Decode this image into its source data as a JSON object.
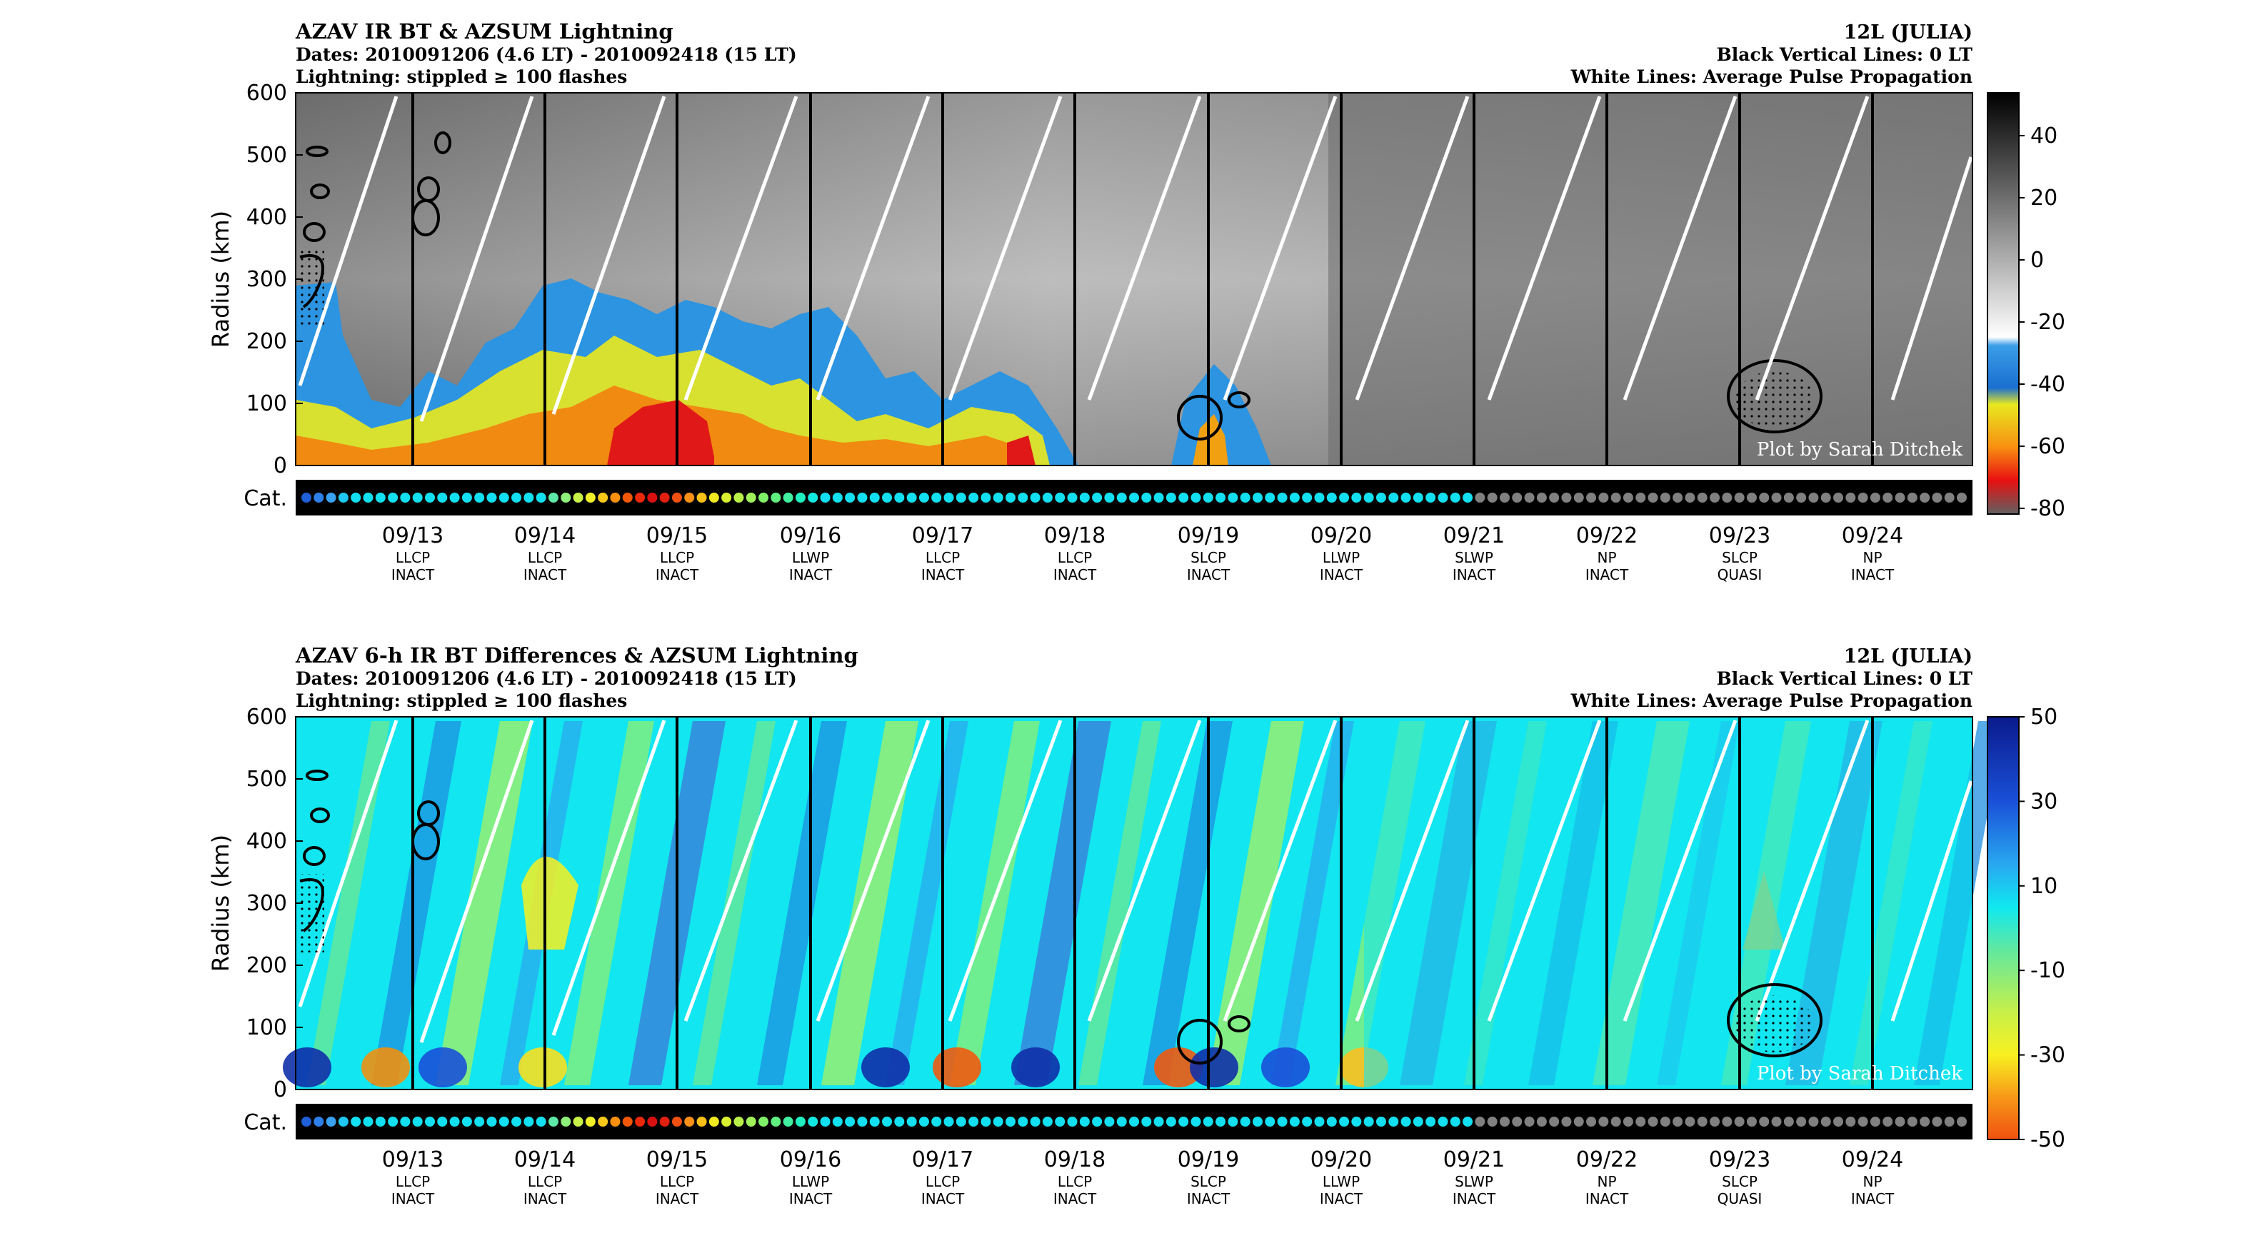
{
  "panels": [
    {
      "title": "AZAV IR BT & AZSUM Lightning",
      "dates": "Dates: 2010091206 (4.6 LT) - 2010092418 (15 LT)",
      "lightning_note": "Lightning: stippled ≥ 100 flashes",
      "storm": "12L (JULIA)",
      "black_lines_note": "Black Vertical Lines: 0 LT",
      "white_lines_note": "White Lines: Average Pulse Propagation",
      "ylabel": "Radius (km)",
      "yticks": [
        "0",
        "100",
        "200",
        "300",
        "400",
        "500",
        "600"
      ],
      "cat_label": "Cat.",
      "credit": "Plot by Sarah Ditchek",
      "colorbar_ticks": [
        "40",
        "20",
        "0",
        "-20",
        "-40",
        "-60",
        "-80"
      ]
    },
    {
      "title": "AZAV 6-h IR BT Differences & AZSUM Lightning",
      "dates": "Dates: 2010091206 (4.6 LT) - 2010092418 (15 LT)",
      "lightning_note": "Lightning: stippled ≥ 100 flashes",
      "storm": "12L (JULIA)",
      "black_lines_note": "Black Vertical Lines: 0 LT",
      "white_lines_note": "White Lines: Average Pulse Propagation",
      "ylabel": "Radius (km)",
      "yticks": [
        "0",
        "100",
        "200",
        "300",
        "400",
        "500",
        "600"
      ],
      "cat_label": "Cat.",
      "credit": "Plot by Sarah Ditchek",
      "colorbar_ticks": [
        "50",
        "30",
        "10",
        "-10",
        "-30",
        "-50"
      ]
    }
  ],
  "days": [
    {
      "date": "09/13",
      "phase": "LLCP",
      "activity": "INACT"
    },
    {
      "date": "09/14",
      "phase": "LLCP",
      "activity": "INACT"
    },
    {
      "date": "09/15",
      "phase": "LLCP",
      "activity": "INACT"
    },
    {
      "date": "09/16",
      "phase": "LLWP",
      "activity": "INACT"
    },
    {
      "date": "09/17",
      "phase": "LLCP",
      "activity": "INACT"
    },
    {
      "date": "09/18",
      "phase": "LLCP",
      "activity": "INACT"
    },
    {
      "date": "09/19",
      "phase": "SLCP",
      "activity": "INACT"
    },
    {
      "date": "09/20",
      "phase": "LLWP",
      "activity": "INACT"
    },
    {
      "date": "09/21",
      "phase": "SLWP",
      "activity": "INACT"
    },
    {
      "date": "09/22",
      "phase": "NP",
      "activity": "INACT"
    },
    {
      "date": "09/23",
      "phase": "SLCP",
      "activity": "QUASI"
    },
    {
      "date": "09/24",
      "phase": "NP",
      "activity": "INACT"
    }
  ],
  "category_colors": [
    "#1f5fd8",
    "#2f7fe8",
    "#3aa0f0",
    "#1ec8f0",
    "#12e0f0",
    "#12e0f0",
    "#12e0f0",
    "#12e0f0",
    "#12e0f0",
    "#12e0f0",
    "#12e0f0",
    "#12e0f0",
    "#12e0f0",
    "#12e0f0",
    "#12e0f0",
    "#12e0f0",
    "#12e0f0",
    "#12e0f0",
    "#12e0f0",
    "#12e0f0",
    "#5de8a8",
    "#8ef07a",
    "#c8f048",
    "#f0f028",
    "#f8c818",
    "#f89010",
    "#f05808",
    "#e82808",
    "#d81010",
    "#e02010",
    "#f05010",
    "#f89018",
    "#f8c018",
    "#f0e820",
    "#d8f030",
    "#b8f048",
    "#a0f058",
    "#80f068",
    "#60f080",
    "#40f0a0",
    "#20f0c0",
    "#10e8e0",
    "#12e0f0",
    "#12e0f0",
    "#12e0f0",
    "#12e0f0",
    "#12e0f0",
    "#12e0f0",
    "#12e0f0",
    "#12e0f0",
    "#12e0f0",
    "#12e0f0",
    "#12e0f0",
    "#12e0f0",
    "#12e0f0",
    "#12e0f0",
    "#12e0f0",
    "#12e0f0",
    "#12e0f0",
    "#12e0f0",
    "#12e0f0",
    "#12e0f0",
    "#12e0f0",
    "#12e0f0",
    "#12e0f0",
    "#12e0f0",
    "#12e0f0",
    "#12e0f0",
    "#12e0f0",
    "#12e0f0",
    "#12e0f0",
    "#12e0f0",
    "#12e0f0",
    "#12e0f0",
    "#12e0f0",
    "#12e0f0",
    "#12e0f0",
    "#12e0f0",
    "#12e0f0",
    "#12e0f0",
    "#12e0f0",
    "#12e0f0",
    "#12e0f0",
    "#12e0f0",
    "#12e0f0",
    "#12e0f0",
    "#12e0f0",
    "#12e0f0",
    "#12e0f0",
    "#12e0f0",
    "#12e0f0",
    "#12e0f0",
    "#12e0f0",
    "#12e0f0",
    "#12e0f0",
    "#808080",
    "#808080",
    "#808080",
    "#808080",
    "#808080",
    "#808080",
    "#808080",
    "#808080",
    "#808080",
    "#808080",
    "#808080",
    "#808080",
    "#808080",
    "#808080",
    "#808080",
    "#808080",
    "#808080",
    "#808080",
    "#808080",
    "#808080",
    "#808080",
    "#808080",
    "#808080",
    "#808080",
    "#808080",
    "#808080",
    "#808080",
    "#808080",
    "#808080",
    "#808080",
    "#808080",
    "#808080",
    "#808080",
    "#808080",
    "#808080",
    "#808080",
    "#808080",
    "#808080",
    "#808080",
    "#808080"
  ],
  "chart_data": [
    {
      "type": "heatmap",
      "title": "AZAV IR BT & AZSUM Lightning",
      "ylabel": "Radius (km)",
      "ylim": [
        0,
        600
      ],
      "x_tick_labels": [
        "09/13",
        "09/14",
        "09/15",
        "09/16",
        "09/17",
        "09/18",
        "09/19",
        "09/20",
        "09/21",
        "09/22",
        "09/23",
        "09/24"
      ],
      "colorbar_range": [
        -80,
        50
      ],
      "colormap": "gray (warm) to blue/yellow/red (cold)",
      "notes": "Azimuthally averaged IR brightness temperature vs radius and time; cold cloud tops (< -40) near core 09/12-09/17 and 09/19"
    },
    {
      "type": "heatmap",
      "title": "AZAV 6-h IR BT Differences & AZSUM Lightning",
      "ylabel": "Radius (km)",
      "ylim": [
        0,
        600
      ],
      "x_tick_labels": [
        "09/13",
        "09/14",
        "09/15",
        "09/16",
        "09/17",
        "09/18",
        "09/19",
        "09/20",
        "09/21",
        "09/22",
        "09/23",
        "09/24"
      ],
      "colorbar_range": [
        -50,
        50
      ],
      "colormap": "blue (warming) / cyan / green / yellow / orange (cooling)",
      "notes": "6-hour IR BT differences with filled contours; outward-propagating diurnal pulses"
    }
  ]
}
